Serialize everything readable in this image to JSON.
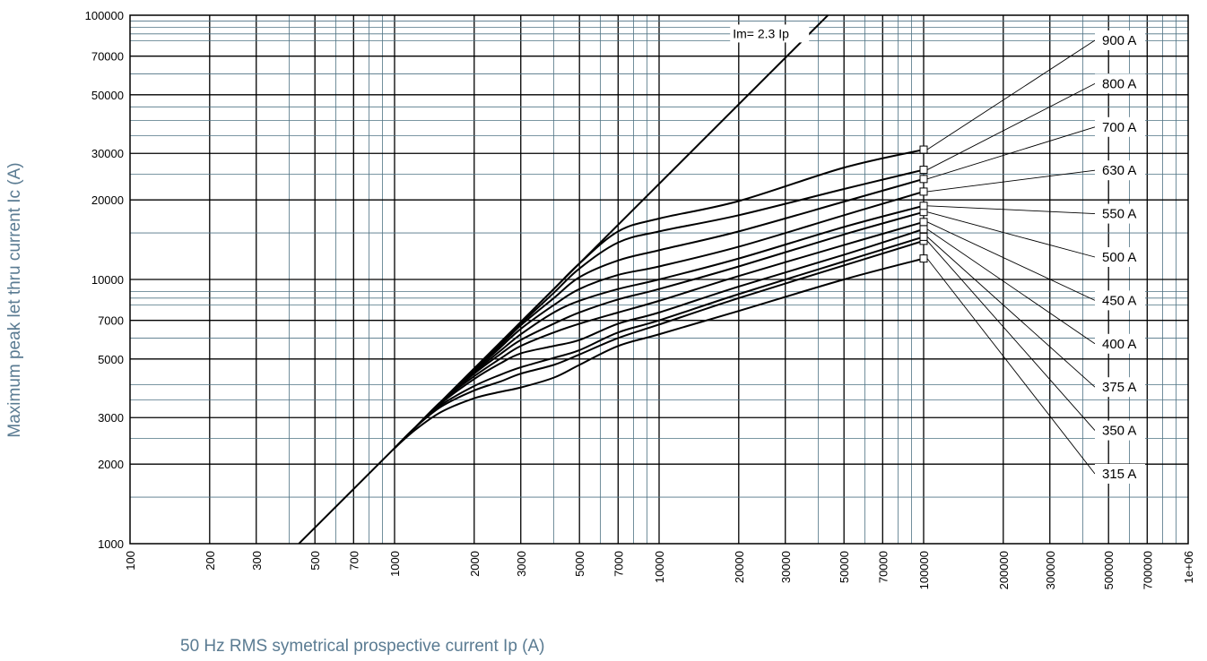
{
  "chart_data": {
    "type": "line",
    "title": "",
    "xlabel": "50 Hz RMS symetrical prospective current Ip (A)",
    "ylabel": "Maximum peak let thru current Ic (A)",
    "x_scale": "log",
    "y_scale": "log",
    "xlim": [
      100,
      1000000
    ],
    "ylim": [
      1000,
      100000
    ],
    "grid": true,
    "x_ticks": [
      100,
      200,
      300,
      500,
      700,
      1000,
      2000,
      3000,
      5000,
      7000,
      10000,
      20000,
      30000,
      50000,
      70000,
      100000,
      200000,
      300000,
      500000,
      700000,
      1000000
    ],
    "x_tick_labels": [
      "100",
      "200",
      "300",
      "500",
      "700",
      "1000",
      "2000",
      "3000",
      "5000",
      "7000",
      "10000",
      "20000",
      "30000",
      "50000",
      "70000",
      "100000",
      "200000",
      "300000",
      "500000",
      "700000",
      "1e+06"
    ],
    "y_ticks": [
      1000,
      2000,
      3000,
      5000,
      7000,
      10000,
      20000,
      30000,
      50000,
      70000,
      100000
    ],
    "y_tick_labels": [
      "1000",
      "2000",
      "3000",
      "5000",
      "7000",
      "10000",
      "20000",
      "30000",
      "50000",
      "70000",
      "100000"
    ],
    "reference_line": {
      "label": "Im= 2.3 Ip",
      "factor": 2.3,
      "x": [
        435,
        43500
      ]
    },
    "series": [
      {
        "name": "315 A",
        "x": [
          1000,
          1200,
          1500,
          2000,
          2500,
          3000,
          4000,
          5000,
          7000,
          10000,
          20000,
          50000,
          100000
        ],
        "values": [
          2300,
          2700,
          3150,
          3550,
          3750,
          3900,
          4250,
          4750,
          5600,
          6200,
          7600,
          10000,
          12000
        ]
      },
      {
        "name": "350 A",
        "x": [
          1000,
          1200,
          1500,
          2000,
          2500,
          3000,
          4000,
          5000,
          7000,
          10000,
          20000,
          50000,
          100000
        ],
        "values": [
          2300,
          2760,
          3300,
          3800,
          4100,
          4400,
          4750,
          5200,
          6000,
          6750,
          8500,
          11300,
          14000
        ]
      },
      {
        "name": "375 A",
        "x": [
          1000,
          1200,
          1500,
          2000,
          2500,
          3000,
          4000,
          5000,
          7000,
          10000,
          20000,
          50000,
          100000
        ],
        "values": [
          2300,
          2760,
          3350,
          3950,
          4350,
          4650,
          5050,
          5400,
          6300,
          7000,
          8800,
          11700,
          14500
        ]
      },
      {
        "name": "400 A",
        "x": [
          1000,
          1200,
          1500,
          2000,
          2500,
          3000,
          4000,
          5000,
          7000,
          10000,
          20000,
          50000,
          100000
        ],
        "values": [
          2300,
          2760,
          3400,
          4200,
          4800,
          5250,
          5600,
          5900,
          6800,
          7500,
          9400,
          12400,
          15500
        ]
      },
      {
        "name": "450 A",
        "x": [
          1000,
          1200,
          1500,
          2000,
          2500,
          3000,
          4000,
          5000,
          7000,
          10000,
          20000,
          50000,
          100000
        ],
        "values": [
          2300,
          2760,
          3450,
          4300,
          5000,
          5600,
          6300,
          6800,
          7500,
          8300,
          10300,
          13500,
          16500
        ]
      },
      {
        "name": "500 A",
        "x": [
          1000,
          1200,
          1500,
          2000,
          2500,
          3000,
          4000,
          5000,
          7000,
          10000,
          20000,
          50000,
          100000
        ],
        "values": [
          2300,
          2760,
          3450,
          4400,
          5200,
          5900,
          6800,
          7500,
          8400,
          9200,
          11200,
          14800,
          18000
        ]
      },
      {
        "name": "550 A",
        "x": [
          1000,
          1200,
          1500,
          2000,
          2500,
          3000,
          4000,
          5000,
          7000,
          10000,
          20000,
          50000,
          100000
        ],
        "values": [
          2300,
          2760,
          3450,
          4450,
          5350,
          6200,
          7500,
          8300,
          9200,
          10000,
          12000,
          15800,
          19000
        ]
      },
      {
        "name": "630 A",
        "x": [
          1000,
          1200,
          1500,
          2000,
          2500,
          3000,
          4000,
          5000,
          7000,
          10000,
          20000,
          50000,
          100000
        ],
        "values": [
          2300,
          2760,
          3450,
          4500,
          5500,
          6500,
          8000,
          9200,
          10400,
          11200,
          13300,
          17500,
          21500
        ]
      },
      {
        "name": "700 A",
        "x": [
          1000,
          1200,
          1500,
          2000,
          2500,
          3000,
          4000,
          5000,
          7000,
          10000,
          20000,
          50000,
          100000
        ],
        "values": [
          2300,
          2760,
          3450,
          4550,
          5600,
          6700,
          8500,
          10200,
          11800,
          12900,
          15200,
          19700,
          24000
        ]
      },
      {
        "name": "800 A",
        "x": [
          1000,
          1200,
          1500,
          2000,
          2500,
          3000,
          4000,
          5000,
          7000,
          10000,
          20000,
          50000,
          100000
        ],
        "values": [
          2300,
          2760,
          3450,
          4600,
          5700,
          6800,
          8900,
          11000,
          13800,
          15200,
          17500,
          22000,
          26000
        ]
      },
      {
        "name": "900 A",
        "x": [
          1000,
          1200,
          1500,
          2000,
          2500,
          3000,
          4000,
          5000,
          7000,
          10000,
          20000,
          50000,
          100000
        ],
        "values": [
          2300,
          2760,
          3450,
          4600,
          5750,
          6900,
          9200,
          11500,
          15200,
          17000,
          19800,
          26500,
          31000
        ]
      }
    ],
    "label_column": {
      "x": 1000000,
      "order_top_to_bottom": [
        "900 A",
        "800 A",
        "700 A",
        "630 A",
        "550 A",
        "500 A",
        "450 A",
        "400 A",
        "375 A",
        "350 A",
        "315 A"
      ]
    }
  },
  "colors": {
    "major_grid": "#000000",
    "minor_grid": "#4f7384",
    "curve": "#000000",
    "axis_title": "#5a7b92"
  }
}
